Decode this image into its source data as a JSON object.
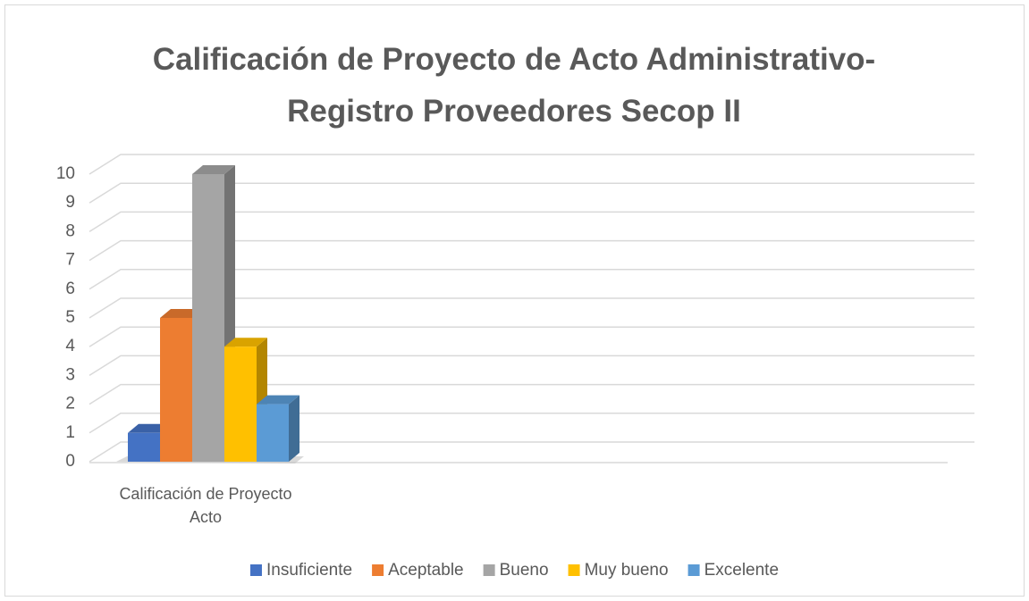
{
  "chart_data": {
    "type": "bar3d",
    "title": "Calificación de Proyecto de Acto Administrativo-Registro Proveedores Secop II",
    "categories": [
      "Calificación de Proyecto Acto"
    ],
    "series": [
      {
        "name": "Insuficiente",
        "color": "#4472c4",
        "values": [
          1
        ]
      },
      {
        "name": "Aceptable",
        "color": "#ed7d31",
        "values": [
          5
        ]
      },
      {
        "name": "Bueno",
        "color": "#a5a5a5",
        "values": [
          10
        ]
      },
      {
        "name": "Muy bueno",
        "color": "#ffc000",
        "values": [
          4
        ]
      },
      {
        "name": "Excelente",
        "color": "#5b9bd5",
        "values": [
          2
        ]
      }
    ],
    "ylim": [
      0,
      10
    ],
    "yticks": [
      0,
      1,
      2,
      3,
      4,
      5,
      6,
      7,
      8,
      9,
      10
    ],
    "grid": true,
    "legend": "bottom"
  }
}
